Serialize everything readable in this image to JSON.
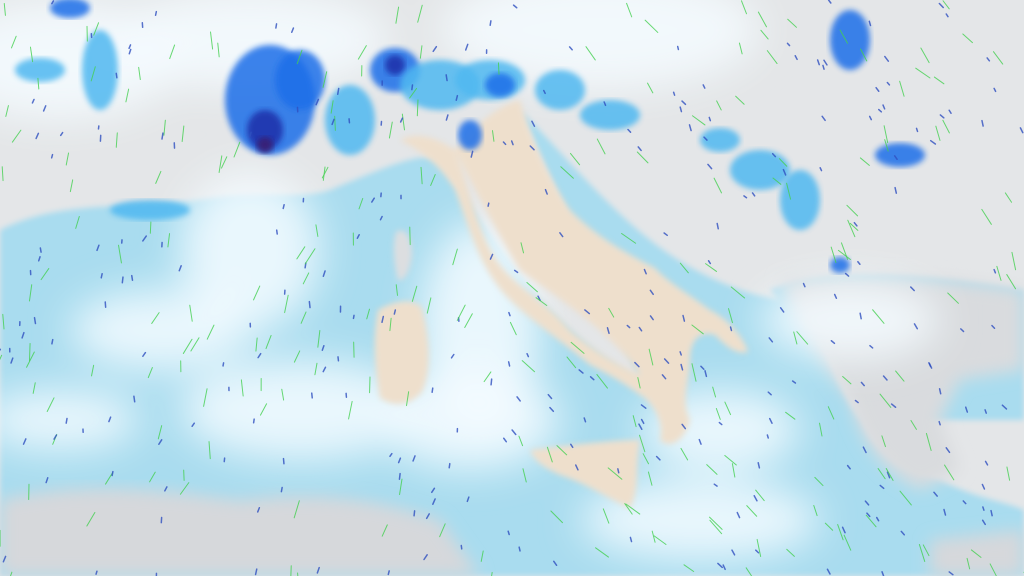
{
  "map": {
    "colors": {
      "land": "#e6e8ea",
      "sea": "#a9dcef",
      "cloud": "#f4fbff",
      "italy": "#eedfcc",
      "precip_light": "#4fb8f0",
      "precip_medium": "#1e6ee8",
      "precip_heavy": "#1a2fa8",
      "precip_extreme": "#3a1a6e",
      "wind_green": "#44d050",
      "wind_blue": "#3050c0"
    }
  }
}
